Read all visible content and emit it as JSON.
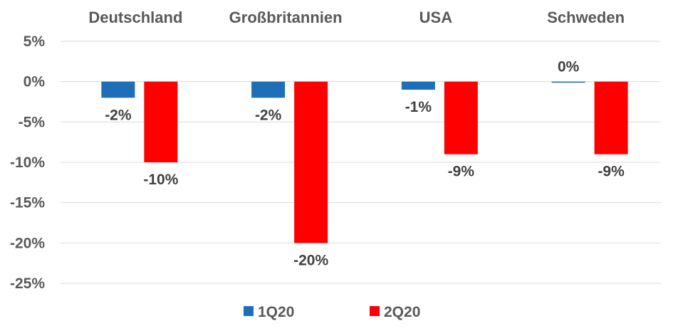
{
  "chart_data": {
    "type": "bar",
    "categories": [
      "Deutschland",
      "Großbritannien",
      "USA",
      "Schweden"
    ],
    "series": [
      {
        "name": "1Q20",
        "values": [
          -2,
          -2,
          -1,
          0
        ],
        "labels": [
          "-2%",
          "-2%",
          "-1%",
          "0%"
        ],
        "color": "#1f6fb8"
      },
      {
        "name": "2Q20",
        "values": [
          -10,
          -20,
          -9,
          -9
        ],
        "labels": [
          "-10%",
          "-20%",
          "-9%",
          "-9%"
        ],
        "color": "#ff0000"
      }
    ],
    "ylim": [
      -25,
      5
    ],
    "yticks": [
      5,
      0,
      -5,
      -10,
      -15,
      -20,
      -25
    ],
    "ytick_labels": [
      "5%",
      "0%",
      "-5%",
      "-10%",
      "-15%",
      "-20%",
      "-25%"
    ],
    "category_position": "top",
    "grid": true,
    "legend": "bottom-center"
  }
}
